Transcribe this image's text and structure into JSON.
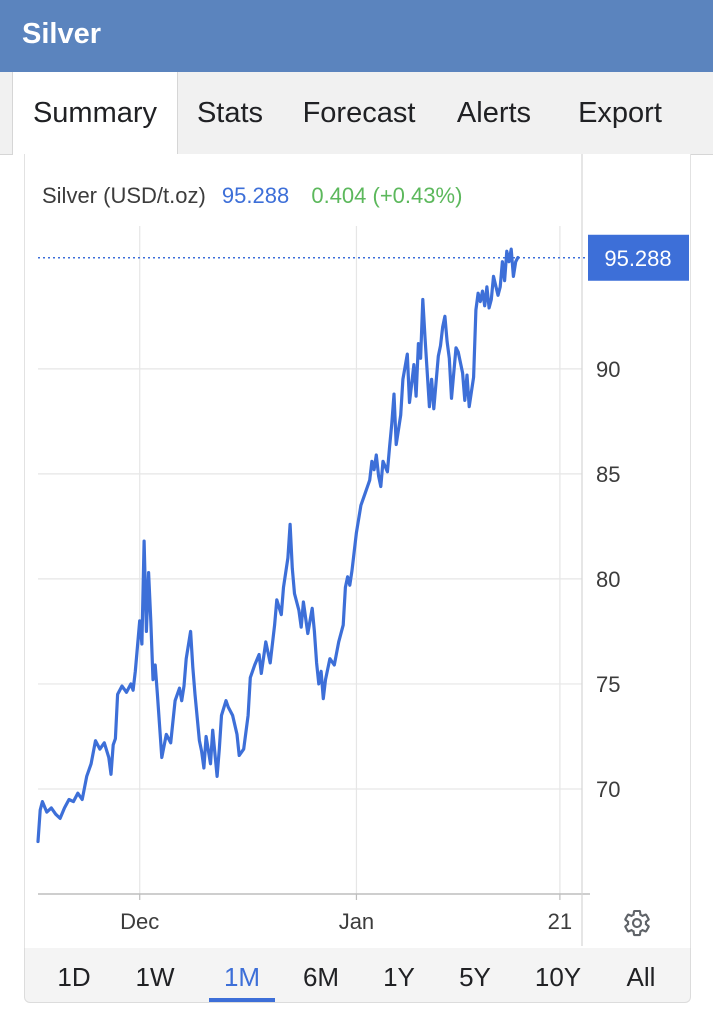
{
  "app": {
    "title": "Silver"
  },
  "tabs": [
    {
      "label": "Summary",
      "active": true
    },
    {
      "label": "Stats",
      "active": false
    },
    {
      "label": "Forecast",
      "active": false
    },
    {
      "label": "Alerts",
      "active": false
    },
    {
      "label": "Export",
      "active": false
    }
  ],
  "quote": {
    "name": "Silver (USD/t.oz)",
    "price": "95.288",
    "change": "0.404 (+0.43%)"
  },
  "settings": {
    "icon": "gear-icon"
  },
  "ranges": [
    {
      "label": "1D",
      "active": false
    },
    {
      "label": "1W",
      "active": false
    },
    {
      "label": "1M",
      "active": true
    },
    {
      "label": "6M",
      "active": false
    },
    {
      "label": "1Y",
      "active": false
    },
    {
      "label": "5Y",
      "active": false
    },
    {
      "label": "10Y",
      "active": false
    },
    {
      "label": "All",
      "active": false
    }
  ],
  "colors": {
    "line": "#3d6fd8",
    "price_tag": "#3d6fd8",
    "change_positive": "#5cb85c",
    "grid": "#e6e6e6",
    "header": "#5b84be"
  },
  "chart_data": {
    "type": "line",
    "x_tick_labels": [
      "Dec",
      "Jan",
      "21"
    ],
    "x_tick_positions": [
      4.6,
      14.4,
      23.6
    ],
    "xlim": [
      0,
      24.6
    ],
    "y_ticks": [
      70,
      75,
      80,
      85,
      90
    ],
    "ylim": [
      65,
      96.8
    ],
    "last_price": 95.288,
    "last_price_label": "95.288",
    "grid": true,
    "series": [
      {
        "values": [
          [
            0.0,
            67.5
          ],
          [
            0.1,
            69.0
          ],
          [
            0.2,
            69.4
          ],
          [
            0.4,
            68.9
          ],
          [
            0.6,
            69.1
          ],
          [
            0.8,
            68.8
          ],
          [
            1.0,
            68.6
          ],
          [
            1.2,
            69.1
          ],
          [
            1.4,
            69.5
          ],
          [
            1.6,
            69.4
          ],
          [
            1.8,
            69.8
          ],
          [
            2.0,
            69.5
          ],
          [
            2.2,
            70.6
          ],
          [
            2.4,
            71.2
          ],
          [
            2.6,
            72.3
          ],
          [
            2.8,
            71.9
          ],
          [
            3.0,
            72.2
          ],
          [
            3.2,
            71.5
          ],
          [
            3.3,
            70.7
          ],
          [
            3.4,
            72.1
          ],
          [
            3.5,
            72.4
          ],
          [
            3.6,
            74.5
          ],
          [
            3.8,
            74.9
          ],
          [
            4.0,
            74.6
          ],
          [
            4.2,
            75.0
          ],
          [
            4.3,
            74.7
          ],
          [
            4.4,
            75.6
          ],
          [
            4.5,
            76.8
          ],
          [
            4.6,
            78.0
          ],
          [
            4.7,
            76.9
          ],
          [
            4.8,
            81.8
          ],
          [
            4.9,
            77.5
          ],
          [
            5.0,
            80.3
          ],
          [
            5.1,
            78.0
          ],
          [
            5.2,
            75.2
          ],
          [
            5.3,
            75.9
          ],
          [
            5.4,
            74.5
          ],
          [
            5.6,
            71.5
          ],
          [
            5.8,
            72.6
          ],
          [
            6.0,
            72.2
          ],
          [
            6.2,
            74.2
          ],
          [
            6.4,
            74.8
          ],
          [
            6.5,
            74.2
          ],
          [
            6.6,
            74.9
          ],
          [
            6.7,
            76.2
          ],
          [
            6.9,
            77.5
          ],
          [
            7.0,
            75.8
          ],
          [
            7.1,
            74.5
          ],
          [
            7.3,
            72.3
          ],
          [
            7.4,
            71.8
          ],
          [
            7.5,
            71.0
          ],
          [
            7.6,
            72.5
          ],
          [
            7.8,
            71.2
          ],
          [
            7.9,
            72.8
          ],
          [
            8.1,
            70.6
          ],
          [
            8.2,
            71.9
          ],
          [
            8.3,
            73.5
          ],
          [
            8.5,
            74.2
          ],
          [
            8.6,
            73.9
          ],
          [
            8.8,
            73.5
          ],
          [
            9.0,
            72.6
          ],
          [
            9.1,
            71.6
          ],
          [
            9.3,
            71.9
          ],
          [
            9.5,
            73.5
          ],
          [
            9.6,
            75.3
          ],
          [
            9.8,
            75.9
          ],
          [
            10.0,
            76.4
          ],
          [
            10.1,
            75.5
          ],
          [
            10.3,
            77.0
          ],
          [
            10.5,
            76.0
          ],
          [
            10.7,
            77.8
          ],
          [
            10.8,
            79.0
          ],
          [
            11.0,
            78.3
          ],
          [
            11.1,
            79.6
          ],
          [
            11.3,
            81.0
          ],
          [
            11.4,
            82.6
          ],
          [
            11.5,
            80.5
          ],
          [
            11.6,
            79.3
          ],
          [
            11.8,
            78.5
          ],
          [
            11.9,
            77.7
          ],
          [
            12.0,
            78.9
          ],
          [
            12.2,
            77.4
          ],
          [
            12.4,
            78.6
          ],
          [
            12.5,
            77.5
          ],
          [
            12.6,
            76.0
          ],
          [
            12.7,
            75.0
          ],
          [
            12.8,
            75.6
          ],
          [
            12.9,
            74.3
          ],
          [
            13.0,
            75.2
          ],
          [
            13.2,
            76.2
          ],
          [
            13.4,
            75.9
          ],
          [
            13.6,
            77.0
          ],
          [
            13.8,
            77.8
          ],
          [
            13.9,
            79.6
          ],
          [
            14.0,
            80.1
          ],
          [
            14.1,
            79.7
          ],
          [
            14.2,
            80.4
          ],
          [
            14.3,
            81.3
          ],
          [
            14.4,
            82.2
          ],
          [
            14.6,
            83.5
          ],
          [
            14.8,
            84.1
          ],
          [
            14.9,
            84.4
          ],
          [
            15.0,
            84.7
          ],
          [
            15.1,
            85.6
          ],
          [
            15.2,
            85.2
          ],
          [
            15.3,
            85.9
          ],
          [
            15.4,
            84.9
          ],
          [
            15.5,
            84.4
          ],
          [
            15.6,
            85.6
          ],
          [
            15.8,
            85.1
          ],
          [
            15.9,
            86.3
          ],
          [
            16.0,
            87.4
          ],
          [
            16.1,
            88.8
          ],
          [
            16.2,
            86.4
          ],
          [
            16.4,
            87.8
          ],
          [
            16.5,
            89.5
          ],
          [
            16.7,
            90.7
          ],
          [
            16.8,
            88.4
          ],
          [
            17.0,
            90.2
          ],
          [
            17.1,
            88.7
          ],
          [
            17.2,
            91.2
          ],
          [
            17.3,
            90.5
          ],
          [
            17.4,
            93.3
          ],
          [
            17.5,
            91.5
          ],
          [
            17.7,
            88.2
          ],
          [
            17.8,
            89.5
          ],
          [
            17.9,
            88.1
          ],
          [
            18.1,
            90.6
          ],
          [
            18.2,
            91.1
          ],
          [
            18.3,
            92.0
          ],
          [
            18.4,
            92.5
          ],
          [
            18.5,
            91.3
          ],
          [
            18.6,
            90.5
          ],
          [
            18.7,
            88.6
          ],
          [
            18.9,
            91.0
          ],
          [
            19.0,
            90.8
          ],
          [
            19.2,
            89.8
          ],
          [
            19.3,
            88.5
          ],
          [
            19.4,
            89.7
          ],
          [
            19.5,
            88.2
          ],
          [
            19.6,
            88.9
          ],
          [
            19.7,
            89.6
          ],
          [
            19.8,
            92.8
          ],
          [
            19.9,
            93.6
          ],
          [
            20.0,
            93.2
          ],
          [
            20.1,
            93.7
          ],
          [
            20.2,
            93.0
          ],
          [
            20.3,
            93.9
          ],
          [
            20.4,
            92.9
          ],
          [
            20.5,
            93.3
          ],
          [
            20.6,
            94.4
          ],
          [
            20.8,
            93.5
          ],
          [
            20.9,
            93.9
          ],
          [
            21.0,
            95.1
          ],
          [
            21.1,
            94.2
          ],
          [
            21.2,
            95.6
          ],
          [
            21.3,
            95.1
          ],
          [
            21.4,
            95.7
          ],
          [
            21.5,
            94.4
          ],
          [
            21.6,
            95.1
          ],
          [
            21.7,
            95.3
          ]
        ]
      }
    ]
  }
}
